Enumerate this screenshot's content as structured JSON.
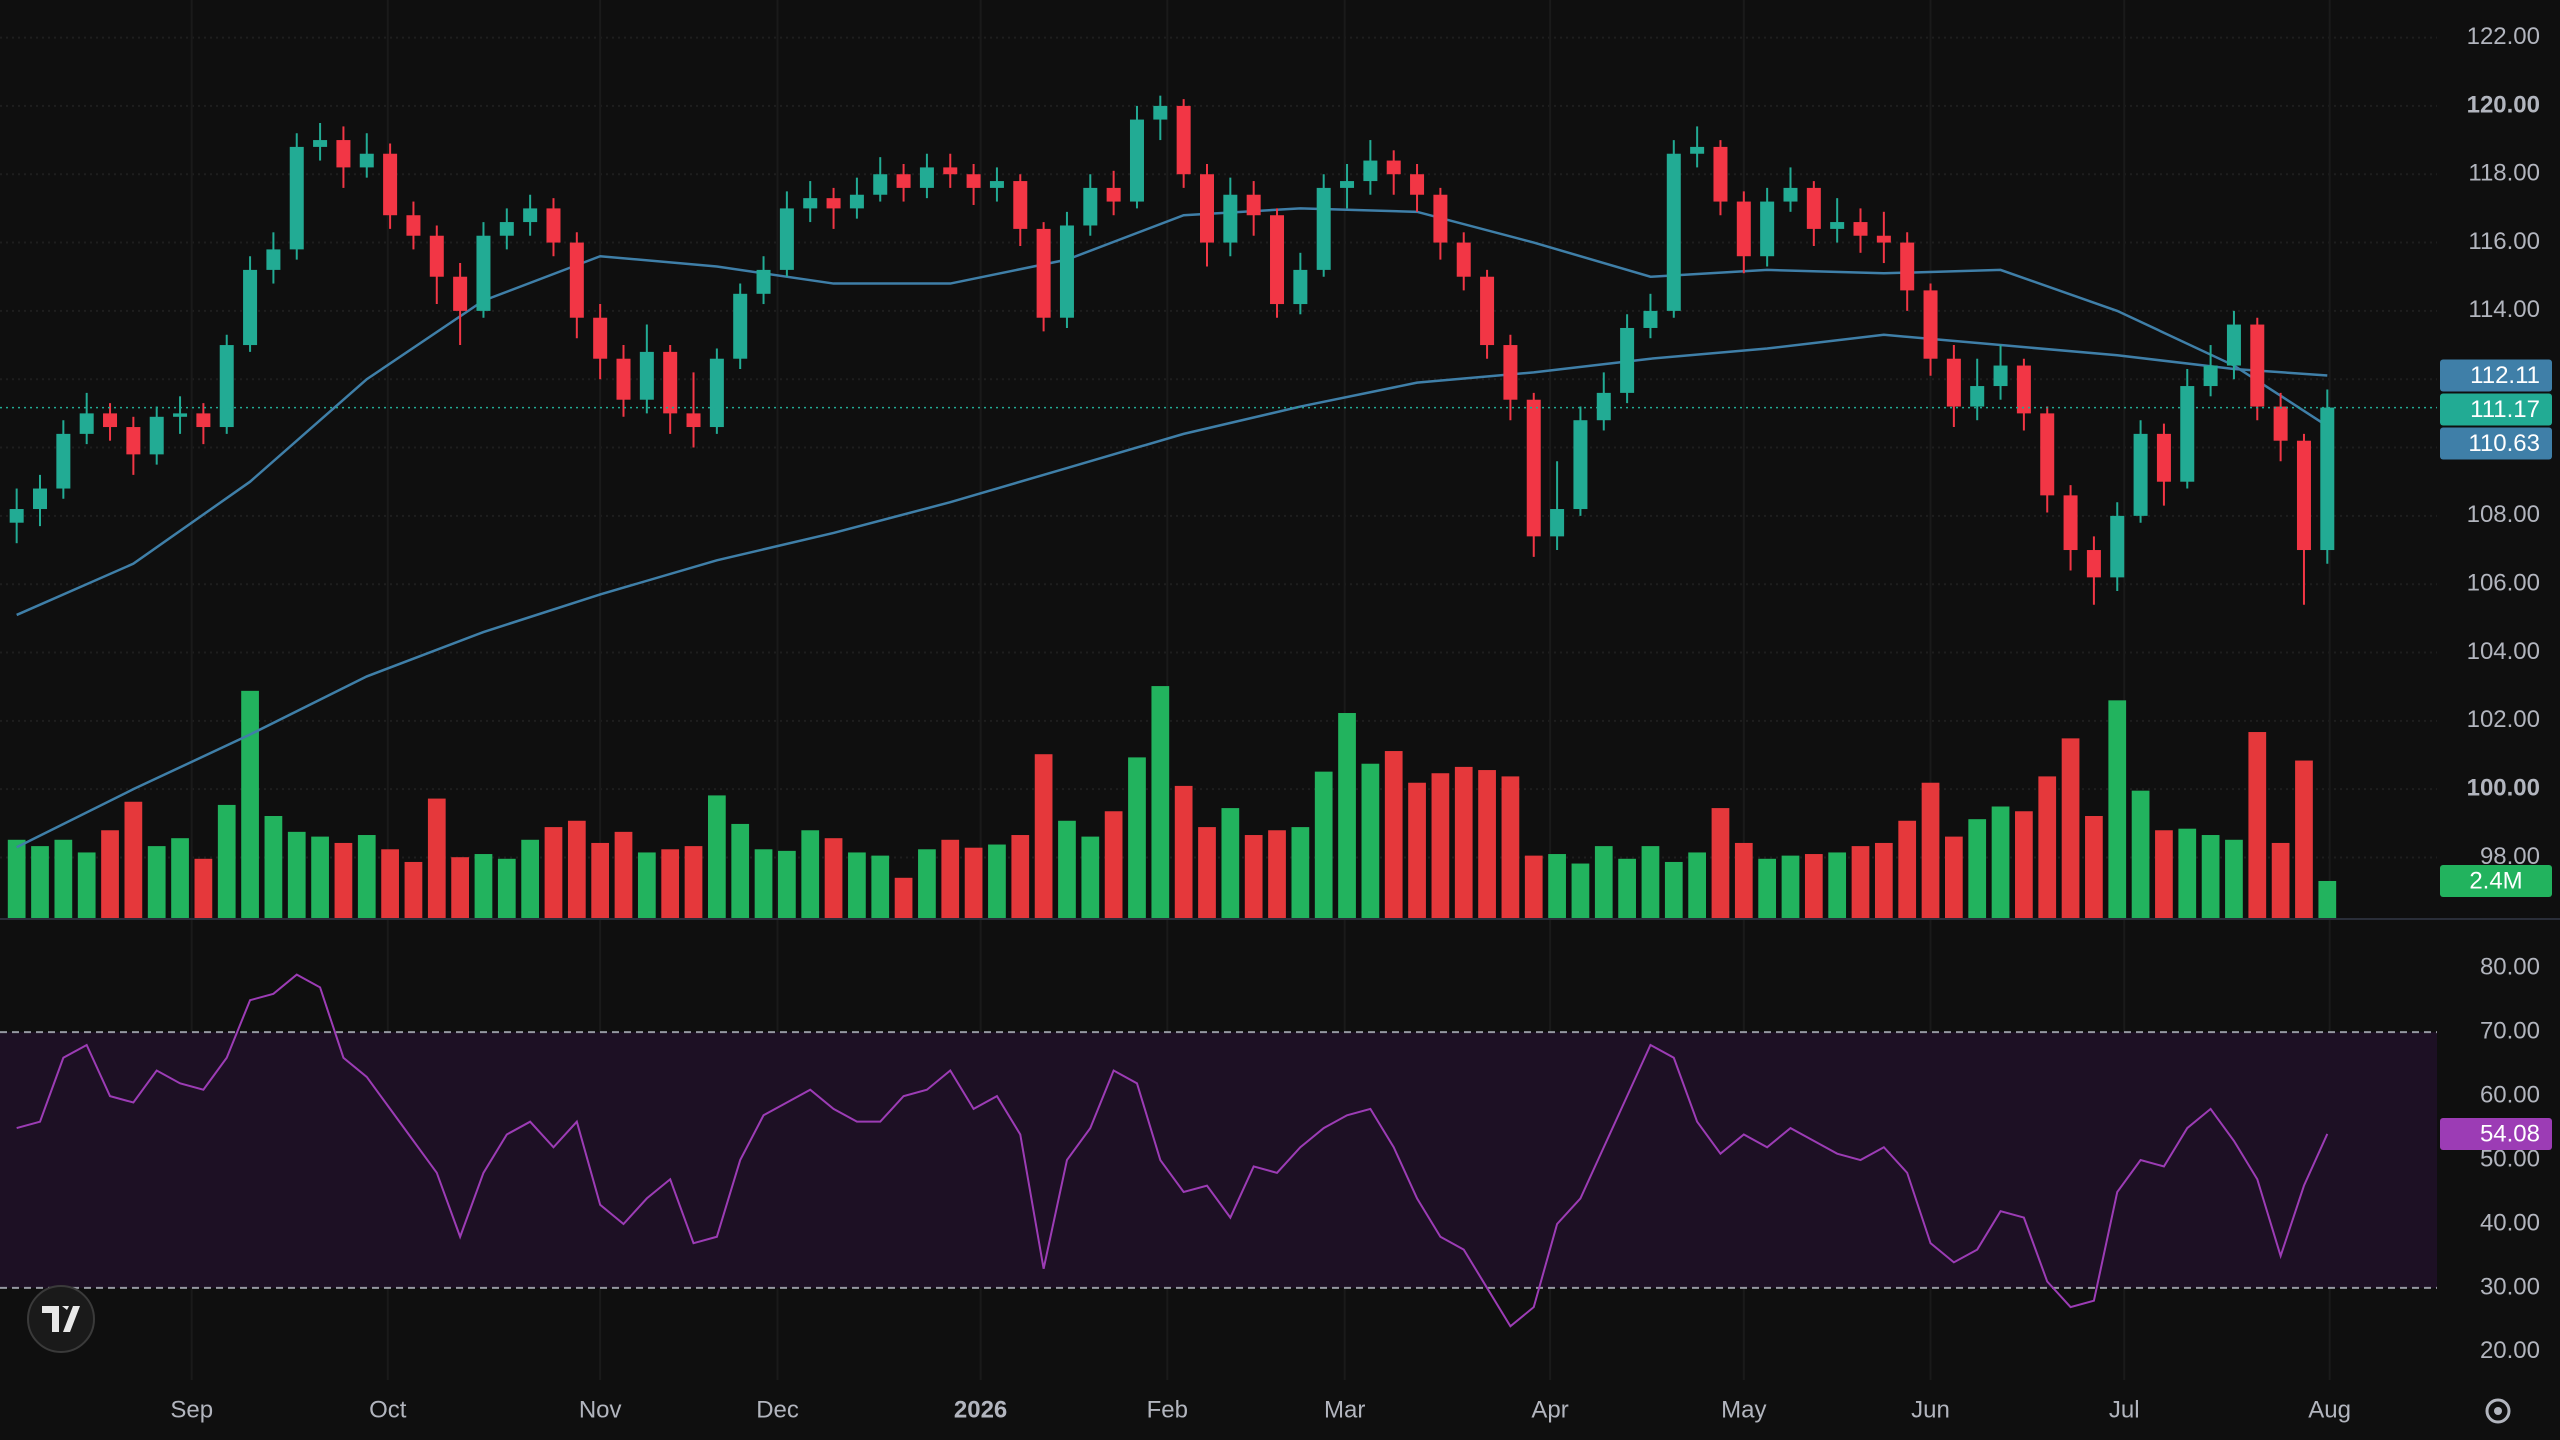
{
  "chart_data": [
    {
      "type": "candlestick",
      "xlim": [
        -0.5,
        103.7
      ],
      "ylim": [
        96.2,
        123.1
      ],
      "yticks": [
        {
          "value": 98,
          "label": "98.00"
        },
        {
          "value": 100,
          "label": "100.00"
        },
        {
          "value": 102,
          "label": "102.00"
        },
        {
          "value": 104,
          "label": "104.00"
        },
        {
          "value": 106,
          "label": "106.00"
        },
        {
          "value": 108,
          "label": "108.00"
        },
        {
          "value": 110,
          "label": "110.00"
        },
        {
          "value": 112,
          "label": "112.00"
        },
        {
          "value": 114,
          "label": "114.00"
        },
        {
          "value": 116,
          "label": "116.00"
        },
        {
          "value": 118,
          "label": "118.00"
        },
        {
          "value": 120,
          "label": "120.00"
        },
        {
          "value": 122,
          "label": "122.00"
        }
      ],
      "grid": true,
      "up_color": "#22ab94",
      "down_color": "#f23645",
      "open": [
        107.8,
        108.2,
        108.8,
        110.4,
        111.0,
        110.6,
        109.8,
        110.9,
        111.0,
        110.6,
        113.0,
        115.2,
        115.8,
        118.8,
        119.0,
        118.2,
        118.6,
        116.8,
        116.2,
        115.0,
        114.0,
        116.2,
        116.6,
        117.0,
        116.0,
        113.8,
        112.6,
        111.4,
        112.8,
        111.0,
        110.6,
        112.6,
        114.5,
        115.2,
        117.0,
        117.3,
        117.0,
        117.4,
        118.0,
        117.6,
        118.2,
        118.0,
        117.6,
        117.8,
        116.4,
        113.8,
        116.5,
        117.6,
        117.2,
        119.6,
        120.0,
        118.0,
        116.0,
        117.4,
        116.8,
        114.2,
        115.2,
        117.6,
        117.8,
        118.4,
        118.0,
        117.4,
        116.0,
        115.0,
        113.0,
        111.4,
        107.4,
        108.2,
        110.8,
        111.6,
        113.5,
        114.0,
        118.6,
        118.8,
        117.2,
        115.6,
        117.2,
        117.6,
        116.4,
        116.6,
        116.2,
        116.0,
        114.6,
        112.6,
        111.2,
        111.8,
        112.4,
        111.0,
        108.6,
        107.0,
        106.2,
        108.0,
        110.4,
        109.0,
        111.8,
        112.4,
        113.6,
        111.2,
        110.2,
        107.0
      ],
      "high": [
        108.8,
        109.2,
        110.8,
        111.6,
        111.3,
        110.9,
        111.2,
        111.5,
        111.3,
        113.3,
        115.6,
        116.3,
        119.2,
        119.5,
        119.4,
        119.2,
        118.9,
        117.2,
        116.5,
        115.4,
        116.6,
        117.0,
        117.4,
        117.3,
        116.3,
        114.2,
        113.0,
        113.6,
        113.0,
        112.2,
        112.9,
        114.8,
        115.6,
        117.5,
        117.8,
        117.6,
        117.9,
        118.5,
        118.3,
        118.6,
        118.6,
        118.3,
        118.2,
        118.0,
        116.6,
        116.9,
        118.0,
        118.1,
        120.0,
        120.3,
        120.2,
        118.3,
        117.9,
        117.8,
        117.0,
        115.7,
        118.0,
        118.3,
        119.0,
        118.7,
        118.3,
        117.6,
        116.3,
        115.2,
        113.3,
        111.6,
        109.6,
        111.2,
        112.2,
        113.9,
        114.5,
        119.0,
        119.4,
        119.0,
        117.5,
        117.6,
        118.2,
        117.8,
        117.3,
        117.0,
        116.9,
        116.3,
        114.8,
        113.0,
        112.6,
        113.0,
        112.6,
        111.2,
        108.9,
        107.4,
        108.4,
        110.8,
        110.7,
        112.3,
        113.0,
        114.0,
        113.8,
        111.6,
        110.4,
        111.7
      ],
      "low": [
        107.2,
        107.7,
        108.5,
        110.1,
        110.2,
        109.2,
        109.5,
        110.4,
        110.1,
        110.4,
        112.8,
        114.8,
        115.5,
        118.4,
        117.6,
        117.9,
        116.4,
        115.8,
        114.2,
        113.0,
        113.8,
        115.8,
        116.2,
        115.6,
        113.2,
        112.0,
        110.9,
        111.0,
        110.4,
        110.0,
        110.4,
        112.3,
        114.2,
        115.0,
        116.6,
        116.4,
        116.7,
        117.2,
        117.2,
        117.3,
        117.6,
        117.1,
        117.2,
        115.9,
        113.4,
        113.5,
        116.2,
        116.8,
        117.0,
        119.0,
        117.6,
        115.3,
        115.6,
        116.2,
        113.8,
        113.9,
        115.0,
        117.0,
        117.4,
        117.4,
        116.9,
        115.5,
        114.6,
        112.6,
        110.8,
        106.8,
        107.0,
        108.0,
        110.5,
        111.3,
        113.2,
        113.8,
        118.2,
        116.8,
        115.1,
        115.3,
        116.9,
        115.9,
        116.0,
        115.7,
        115.4,
        114.0,
        112.1,
        110.6,
        110.8,
        111.4,
        110.5,
        108.1,
        106.4,
        105.4,
        105.8,
        107.8,
        108.3,
        108.8,
        111.5,
        112.0,
        110.8,
        109.6,
        105.4,
        106.6
      ],
      "close": [
        108.2,
        108.8,
        110.4,
        111.0,
        110.6,
        109.8,
        110.9,
        111.0,
        110.6,
        113.0,
        115.2,
        115.8,
        118.8,
        119.0,
        118.2,
        118.6,
        116.8,
        116.2,
        115.0,
        114.0,
        116.2,
        116.6,
        117.0,
        116.0,
        113.8,
        112.6,
        111.4,
        112.8,
        111.0,
        110.6,
        112.6,
        114.5,
        115.2,
        117.0,
        117.3,
        117.0,
        117.4,
        118.0,
        117.6,
        118.2,
        118.0,
        117.6,
        117.8,
        116.4,
        113.8,
        116.5,
        117.6,
        117.2,
        119.6,
        120.0,
        118.0,
        116.0,
        117.4,
        116.8,
        114.2,
        115.2,
        117.6,
        117.8,
        118.4,
        118.0,
        117.4,
        116.0,
        115.0,
        113.0,
        111.4,
        107.4,
        108.2,
        110.8,
        111.6,
        113.5,
        114.0,
        118.6,
        118.8,
        117.2,
        115.6,
        117.2,
        117.6,
        116.4,
        116.6,
        116.2,
        116.0,
        114.6,
        112.6,
        111.2,
        111.8,
        112.4,
        111.0,
        108.6,
        107.0,
        106.2,
        108.0,
        110.4,
        109.0,
        111.8,
        112.4,
        113.6,
        111.2,
        110.2,
        107.0,
        111.17
      ],
      "moving_averages": [
        {
          "color": "#3f7fa8",
          "x": [
            0,
            5,
            10,
            15,
            20,
            25,
            30,
            35,
            40,
            45,
            50,
            55,
            60,
            65,
            70,
            75,
            80,
            85,
            90,
            95,
            99
          ],
          "values": [
            105.1,
            106.6,
            109.0,
            112.0,
            114.3,
            115.6,
            115.3,
            114.8,
            114.8,
            115.5,
            116.8,
            117.0,
            116.9,
            116.0,
            115.0,
            115.2,
            115.1,
            115.2,
            114.0,
            112.4,
            110.63
          ]
        },
        {
          "color": "#3f7fa8",
          "x": [
            0,
            5,
            10,
            15,
            20,
            25,
            30,
            35,
            40,
            45,
            50,
            55,
            60,
            65,
            70,
            75,
            80,
            85,
            90,
            95,
            99
          ],
          "values": [
            98.3,
            100.0,
            101.6,
            103.3,
            104.6,
            105.7,
            106.7,
            107.5,
            108.4,
            109.4,
            110.4,
            111.2,
            111.9,
            112.2,
            112.6,
            112.9,
            113.3,
            113.0,
            112.7,
            112.3,
            112.11
          ]
        }
      ],
      "volume": {
        "ylim": [
          0,
          58
        ],
        "up_color": "#22b35e",
        "down_color": "#e5383b",
        "values": [
          5.0,
          4.6,
          5.0,
          4.2,
          5.6,
          7.4,
          4.6,
          5.1,
          3.8,
          7.2,
          14.4,
          6.5,
          5.5,
          5.2,
          4.8,
          5.3,
          4.4,
          3.6,
          7.6,
          3.9,
          4.1,
          3.8,
          5.0,
          5.8,
          6.2,
          4.8,
          5.5,
          4.2,
          4.4,
          4.6,
          7.8,
          6.0,
          4.4,
          4.3,
          5.6,
          5.1,
          4.2,
          4.0,
          2.6,
          4.4,
          5.0,
          4.5,
          4.7,
          5.3,
          10.4,
          6.2,
          5.2,
          6.8,
          10.2,
          14.7,
          8.4,
          5.8,
          7.0,
          5.3,
          5.6,
          5.8,
          9.3,
          13.0,
          9.8,
          10.6,
          8.6,
          9.2,
          9.6,
          9.4,
          9.0,
          4.0,
          4.1,
          3.5,
          4.6,
          3.8,
          4.6,
          3.6,
          4.2,
          7.0,
          4.8,
          3.8,
          4.0,
          4.1,
          4.2,
          4.6,
          4.8,
          6.2,
          8.6,
          5.2,
          6.3,
          7.1,
          6.8,
          9.0,
          11.4,
          6.5,
          13.8,
          8.1,
          5.6,
          5.7,
          5.3,
          5.0,
          11.8,
          4.8,
          10.0,
          2.4
        ],
        "last_label": "2.4M"
      }
    },
    {
      "type": "line",
      "xlim": [
        -0.5,
        103.7
      ],
      "ylim": [
        15.6,
        87.7
      ],
      "yticks": [
        {
          "value": 20,
          "label": "20.00"
        },
        {
          "value": 30,
          "label": "30.00"
        },
        {
          "value": 40,
          "label": "40.00"
        },
        {
          "value": 50,
          "label": "50.00"
        },
        {
          "value": 60,
          "label": "60.00"
        },
        {
          "value": 70,
          "label": "70.00"
        },
        {
          "value": 80,
          "label": "80.00"
        }
      ],
      "xticks": [
        {
          "value": 7.5,
          "label": "Sep"
        },
        {
          "value": 15.9,
          "label": "Oct"
        },
        {
          "value": 25.0,
          "label": "Nov"
        },
        {
          "value": 32.6,
          "label": "Dec"
        },
        {
          "value": 41.3,
          "label": "2026"
        },
        {
          "value": 49.3,
          "label": "Feb"
        },
        {
          "value": 56.9,
          "label": "Mar"
        },
        {
          "value": 65.7,
          "label": "Apr"
        },
        {
          "value": 74.0,
          "label": "May"
        },
        {
          "value": 82.0,
          "label": "Jun"
        },
        {
          "value": 90.3,
          "label": "Jul"
        },
        {
          "value": 99.1,
          "label": "Aug"
        }
      ],
      "color": "#9c3cb5",
      "band": [
        30,
        70
      ],
      "band_color": "#1d1024",
      "values": [
        55,
        56,
        66,
        68,
        60,
        59,
        64,
        62,
        61,
        66,
        75,
        76,
        79,
        77,
        66,
        63,
        58,
        53,
        48,
        38,
        48,
        54,
        56,
        52,
        56,
        43,
        40,
        44,
        47,
        37,
        38,
        50,
        57,
        59,
        61,
        58,
        56,
        56,
        60,
        61,
        64,
        58,
        60,
        54,
        33,
        50,
        55,
        64,
        62,
        50,
        45,
        46,
        41,
        49,
        48,
        52,
        55,
        57,
        58,
        52,
        44,
        38,
        36,
        30,
        24,
        27,
        40,
        44,
        52,
        60,
        68,
        66,
        56,
        51,
        54,
        52,
        55,
        53,
        51,
        50,
        52,
        48,
        37,
        34,
        36,
        42,
        41,
        31,
        27,
        28,
        45,
        50,
        49,
        55,
        58,
        53,
        47,
        35,
        46,
        54.08
      ]
    }
  ]
}
